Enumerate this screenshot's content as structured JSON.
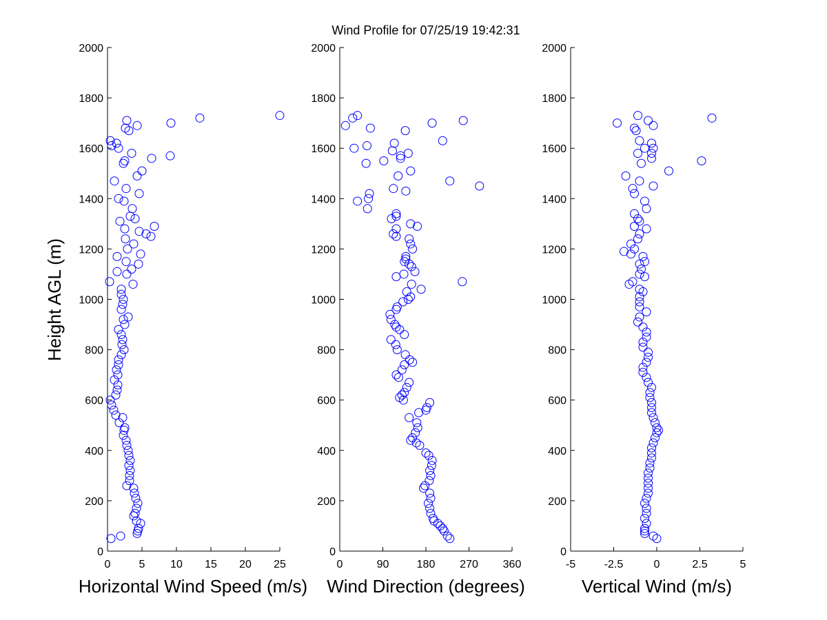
{
  "title": "Wind Profile for  07/25/19 19:42:31",
  "ylabel": "Height AGL (m)",
  "colors": {
    "marker": "#0000ff",
    "axis": "#000000"
  },
  "chart_data": [
    {
      "type": "scatter",
      "name": "speed",
      "xlabel": "Horizontal Wind Speed (m/s)",
      "xlim": [
        0,
        25
      ],
      "ylim": [
        0,
        2000
      ],
      "xticks": [
        0,
        5,
        10,
        15,
        20,
        25
      ],
      "xtick_labels": [
        "0",
        "5",
        "10",
        "15",
        "20",
        "25"
      ],
      "yticks": [
        0,
        200,
        400,
        600,
        800,
        1000,
        1200,
        1400,
        1600,
        1800,
        2000
      ],
      "ytick_labels": [
        "0",
        "200",
        "400",
        "600",
        "800",
        "1000",
        "1200",
        "1400",
        "1600",
        "1800",
        "2000"
      ],
      "points": [
        [
          0.5,
          50
        ],
        [
          1.9,
          60
        ],
        [
          4.3,
          70
        ],
        [
          4.4,
          80
        ],
        [
          4.5,
          90
        ],
        [
          4.8,
          110
        ],
        [
          4.2,
          120
        ],
        [
          3.8,
          140
        ],
        [
          4.0,
          150
        ],
        [
          4.2,
          170
        ],
        [
          4.4,
          190
        ],
        [
          4.1,
          210
        ],
        [
          3.9,
          230
        ],
        [
          3.8,
          250
        ],
        [
          2.8,
          260
        ],
        [
          3.2,
          280
        ],
        [
          3.2,
          300
        ],
        [
          3.3,
          320
        ],
        [
          3.1,
          340
        ],
        [
          3.3,
          360
        ],
        [
          3.1,
          380
        ],
        [
          3.0,
          400
        ],
        [
          2.8,
          420
        ],
        [
          2.7,
          440
        ],
        [
          2.3,
          460
        ],
        [
          2.4,
          480
        ],
        [
          2.5,
          490
        ],
        [
          1.7,
          510
        ],
        [
          2.2,
          530
        ],
        [
          1.2,
          540
        ],
        [
          0.9,
          560
        ],
        [
          0.6,
          580
        ],
        [
          0.4,
          600
        ],
        [
          1.2,
          620
        ],
        [
          1.4,
          640
        ],
        [
          1.5,
          660
        ],
        [
          1.0,
          680
        ],
        [
          1.5,
          700
        ],
        [
          1.3,
          720
        ],
        [
          1.6,
          740
        ],
        [
          1.6,
          760
        ],
        [
          2.0,
          780
        ],
        [
          2.4,
          800
        ],
        [
          2.1,
          820
        ],
        [
          2.2,
          840
        ],
        [
          2.0,
          860
        ],
        [
          1.6,
          880
        ],
        [
          2.5,
          900
        ],
        [
          2.3,
          920
        ],
        [
          3.0,
          930
        ],
        [
          2.0,
          960
        ],
        [
          2.2,
          980
        ],
        [
          2.3,
          1000
        ],
        [
          2.0,
          1020
        ],
        [
          2.0,
          1040
        ],
        [
          3.7,
          1060
        ],
        [
          0.3,
          1070
        ],
        [
          2.8,
          1100
        ],
        [
          1.4,
          1110
        ],
        [
          3.5,
          1120
        ],
        [
          4.5,
          1140
        ],
        [
          2.7,
          1150
        ],
        [
          4.8,
          1180
        ],
        [
          1.4,
          1170
        ],
        [
          2.9,
          1200
        ],
        [
          3.8,
          1220
        ],
        [
          2.6,
          1240
        ],
        [
          6.3,
          1250
        ],
        [
          5.6,
          1260
        ],
        [
          4.6,
          1270
        ],
        [
          2.5,
          1280
        ],
        [
          6.8,
          1290
        ],
        [
          1.8,
          1310
        ],
        [
          4.0,
          1320
        ],
        [
          3.3,
          1330
        ],
        [
          3.6,
          1360
        ],
        [
          2.4,
          1390
        ],
        [
          1.6,
          1400
        ],
        [
          4.6,
          1420
        ],
        [
          2.7,
          1440
        ],
        [
          1.0,
          1470
        ],
        [
          4.3,
          1490
        ],
        [
          5.0,
          1510
        ],
        [
          2.3,
          1540
        ],
        [
          2.5,
          1550
        ],
        [
          6.4,
          1560
        ],
        [
          9.1,
          1570
        ],
        [
          3.5,
          1580
        ],
        [
          1.6,
          1600
        ],
        [
          0.6,
          1610
        ],
        [
          1.3,
          1620
        ],
        [
          0.4,
          1630
        ],
        [
          3.1,
          1670
        ],
        [
          2.6,
          1680
        ],
        [
          4.3,
          1690
        ],
        [
          9.2,
          1700
        ],
        [
          2.8,
          1710
        ],
        [
          13.4,
          1720
        ],
        [
          25.0,
          1730
        ]
      ]
    },
    {
      "type": "scatter",
      "name": "direction",
      "xlabel": "Wind Direction (degrees)",
      "xlim": [
        0,
        360
      ],
      "ylim": [
        0,
        2000
      ],
      "xticks": [
        0,
        90,
        180,
        270,
        360
      ],
      "xtick_labels": [
        "0",
        "90",
        "180",
        "270",
        "360"
      ],
      "yticks": [
        0,
        200,
        400,
        600,
        800,
        1000,
        1200,
        1400,
        1600,
        1800,
        2000
      ],
      "ytick_labels": [
        "0",
        "200",
        "400",
        "600",
        "800",
        "1000",
        "1200",
        "1400",
        "1600",
        "1800",
        "2000"
      ],
      "points": [
        [
          230,
          50
        ],
        [
          225,
          60
        ],
        [
          218,
          80
        ],
        [
          215,
          90
        ],
        [
          210,
          100
        ],
        [
          205,
          110
        ],
        [
          197,
          120
        ],
        [
          195,
          130
        ],
        [
          190,
          150
        ],
        [
          188,
          170
        ],
        [
          185,
          190
        ],
        [
          190,
          210
        ],
        [
          188,
          230
        ],
        [
          175,
          250
        ],
        [
          178,
          260
        ],
        [
          187,
          280
        ],
        [
          190,
          300
        ],
        [
          188,
          320
        ],
        [
          192,
          340
        ],
        [
          193,
          360
        ],
        [
          186,
          380
        ],
        [
          180,
          390
        ],
        [
          167,
          420
        ],
        [
          160,
          430
        ],
        [
          148,
          440
        ],
        [
          152,
          450
        ],
        [
          158,
          470
        ],
        [
          163,
          490
        ],
        [
          161,
          510
        ],
        [
          145,
          530
        ],
        [
          165,
          550
        ],
        [
          180,
          560
        ],
        [
          182,
          570
        ],
        [
          188,
          590
        ],
        [
          133,
          600
        ],
        [
          125,
          610
        ],
        [
          130,
          620
        ],
        [
          135,
          630
        ],
        [
          140,
          650
        ],
        [
          145,
          670
        ],
        [
          123,
          690
        ],
        [
          118,
          700
        ],
        [
          130,
          720
        ],
        [
          135,
          740
        ],
        [
          152,
          750
        ],
        [
          146,
          760
        ],
        [
          137,
          780
        ],
        [
          120,
          800
        ],
        [
          117,
          820
        ],
        [
          107,
          840
        ],
        [
          135,
          860
        ],
        [
          125,
          880
        ],
        [
          118,
          890
        ],
        [
          115,
          900
        ],
        [
          107,
          920
        ],
        [
          105,
          940
        ],
        [
          118,
          960
        ],
        [
          120,
          970
        ],
        [
          132,
          990
        ],
        [
          143,
          1000
        ],
        [
          148,
          1010
        ],
        [
          140,
          1030
        ],
        [
          170,
          1040
        ],
        [
          150,
          1060
        ],
        [
          256,
          1070
        ],
        [
          118,
          1090
        ],
        [
          134,
          1100
        ],
        [
          157,
          1110
        ],
        [
          150,
          1130
        ],
        [
          145,
          1140
        ],
        [
          135,
          1150
        ],
        [
          138,
          1160
        ],
        [
          138,
          1170
        ],
        [
          152,
          1200
        ],
        [
          148,
          1220
        ],
        [
          145,
          1240
        ],
        [
          118,
          1250
        ],
        [
          112,
          1260
        ],
        [
          118,
          1280
        ],
        [
          162,
          1290
        ],
        [
          148,
          1300
        ],
        [
          108,
          1320
        ],
        [
          118,
          1330
        ],
        [
          118,
          1340
        ],
        [
          58,
          1360
        ],
        [
          37,
          1390
        ],
        [
          60,
          1400
        ],
        [
          62,
          1420
        ],
        [
          138,
          1430
        ],
        [
          112,
          1440
        ],
        [
          292,
          1450
        ],
        [
          230,
          1470
        ],
        [
          122,
          1490
        ],
        [
          148,
          1510
        ],
        [
          55,
          1540
        ],
        [
          92,
          1550
        ],
        [
          127,
          1560
        ],
        [
          127,
          1570
        ],
        [
          143,
          1580
        ],
        [
          110,
          1590
        ],
        [
          30,
          1600
        ],
        [
          57,
          1610
        ],
        [
          114,
          1620
        ],
        [
          215,
          1630
        ],
        [
          137,
          1670
        ],
        [
          64,
          1680
        ],
        [
          12,
          1690
        ],
        [
          193,
          1700
        ],
        [
          258,
          1710
        ],
        [
          27,
          1720
        ],
        [
          37,
          1730
        ]
      ]
    },
    {
      "type": "scatter",
      "name": "vertical",
      "xlabel": "Vertical Wind (m/s)",
      "xlim": [
        -5,
        5
      ],
      "ylim": [
        0,
        2000
      ],
      "xticks": [
        -5,
        -2.5,
        0,
        2.5,
        5
      ],
      "xtick_labels": [
        "-5",
        "-2.5",
        "0",
        "2.5",
        "5"
      ],
      "yticks": [
        0,
        200,
        400,
        600,
        800,
        1000,
        1200,
        1400,
        1600,
        1800,
        2000
      ],
      "ytick_labels": [
        "0",
        "200",
        "400",
        "600",
        "800",
        "1000",
        "1200",
        "1400",
        "1600",
        "1800",
        "2000"
      ],
      "points": [
        [
          0.0,
          50
        ],
        [
          -0.2,
          60
        ],
        [
          -0.7,
          70
        ],
        [
          -0.7,
          80
        ],
        [
          -0.7,
          90
        ],
        [
          -0.6,
          110
        ],
        [
          -0.7,
          130
        ],
        [
          -0.6,
          150
        ],
        [
          -0.6,
          170
        ],
        [
          -0.7,
          190
        ],
        [
          -0.6,
          210
        ],
        [
          -0.5,
          230
        ],
        [
          -0.5,
          250
        ],
        [
          -0.5,
          270
        ],
        [
          -0.5,
          290
        ],
        [
          -0.5,
          310
        ],
        [
          -0.4,
          330
        ],
        [
          -0.4,
          350
        ],
        [
          -0.3,
          370
        ],
        [
          -0.3,
          390
        ],
        [
          -0.3,
          410
        ],
        [
          -0.2,
          430
        ],
        [
          -0.1,
          450
        ],
        [
          0.0,
          470
        ],
        [
          0.1,
          480
        ],
        [
          0.0,
          490
        ],
        [
          -0.1,
          510
        ],
        [
          -0.2,
          530
        ],
        [
          -0.3,
          550
        ],
        [
          -0.3,
          570
        ],
        [
          -0.3,
          590
        ],
        [
          -0.4,
          610
        ],
        [
          -0.4,
          630
        ],
        [
          -0.3,
          650
        ],
        [
          -0.5,
          670
        ],
        [
          -0.6,
          690
        ],
        [
          -0.8,
          710
        ],
        [
          -0.8,
          730
        ],
        [
          -0.6,
          750
        ],
        [
          -0.5,
          770
        ],
        [
          -0.5,
          790
        ],
        [
          -0.8,
          810
        ],
        [
          -0.8,
          830
        ],
        [
          -0.6,
          850
        ],
        [
          -0.6,
          870
        ],
        [
          -0.8,
          890
        ],
        [
          -1.1,
          910
        ],
        [
          -1.0,
          930
        ],
        [
          -0.6,
          950
        ],
        [
          -1.0,
          970
        ],
        [
          -1.0,
          990
        ],
        [
          -1.0,
          1010
        ],
        [
          -0.8,
          1030
        ],
        [
          -1.0,
          1040
        ],
        [
          -1.6,
          1060
        ],
        [
          -1.4,
          1070
        ],
        [
          -0.7,
          1090
        ],
        [
          -1.0,
          1100
        ],
        [
          -0.9,
          1120
        ],
        [
          -1.0,
          1140
        ],
        [
          -0.7,
          1150
        ],
        [
          -0.8,
          1170
        ],
        [
          -1.5,
          1180
        ],
        [
          -1.9,
          1190
        ],
        [
          -1.3,
          1200
        ],
        [
          -1.5,
          1220
        ],
        [
          -1.1,
          1240
        ],
        [
          -1.0,
          1260
        ],
        [
          -0.6,
          1280
        ],
        [
          -1.3,
          1290
        ],
        [
          -1.0,
          1310
        ],
        [
          -1.1,
          1320
        ],
        [
          -1.3,
          1340
        ],
        [
          -0.6,
          1360
        ],
        [
          -0.7,
          1390
        ],
        [
          -1.3,
          1420
        ],
        [
          -1.4,
          1440
        ],
        [
          -0.2,
          1450
        ],
        [
          -1.8,
          1490
        ],
        [
          -1.0,
          1470
        ],
        [
          0.7,
          1510
        ],
        [
          -0.9,
          1540
        ],
        [
          -0.3,
          1560
        ],
        [
          2.6,
          1550
        ],
        [
          -0.3,
          1580
        ],
        [
          -1.1,
          1580
        ],
        [
          -0.2,
          1600
        ],
        [
          -0.7,
          1600
        ],
        [
          -0.3,
          1620
        ],
        [
          -1.0,
          1630
        ],
        [
          -1.2,
          1670
        ],
        [
          -1.3,
          1680
        ],
        [
          -0.2,
          1690
        ],
        [
          -2.3,
          1700
        ],
        [
          -0.5,
          1710
        ],
        [
          3.2,
          1720
        ],
        [
          -1.1,
          1730
        ]
      ]
    }
  ]
}
